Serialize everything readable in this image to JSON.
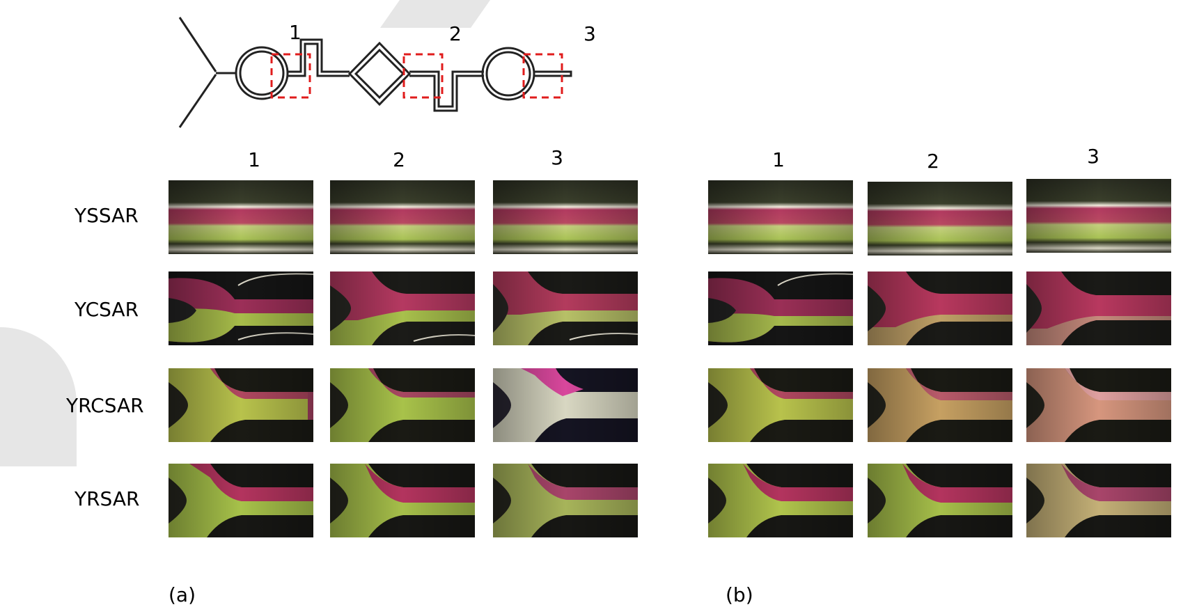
{
  "schematic": {
    "markers": [
      "1",
      "2",
      "3"
    ]
  },
  "panels": [
    {
      "id": "a",
      "caption": "(a)",
      "columns": [
        "1",
        "2",
        "3"
      ]
    },
    {
      "id": "b",
      "caption": "(b)",
      "columns": [
        "1",
        "2",
        "3"
      ]
    }
  ],
  "rows": [
    "YSSAR",
    "YCSAR",
    "YRCSAR",
    "YRSAR"
  ],
  "colors": {
    "red_fluid": "#b8385f",
    "green_fluid": "#a8c24a",
    "channel_dark": "#141414",
    "marker_box": "#e01c1c"
  }
}
